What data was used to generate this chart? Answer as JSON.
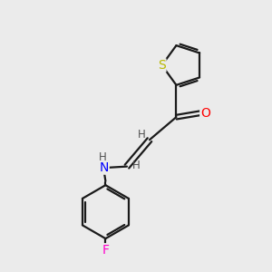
{
  "background_color": "#ebebeb",
  "bond_color": "#1a1a1a",
  "atom_colors": {
    "S": "#b8b800",
    "O": "#ff0000",
    "N": "#0000ff",
    "F": "#ff00cc",
    "H": "#505050"
  },
  "font_size_heavy": 10,
  "font_size_h": 8.5,
  "figsize": [
    3.0,
    3.0
  ],
  "dpi": 100
}
